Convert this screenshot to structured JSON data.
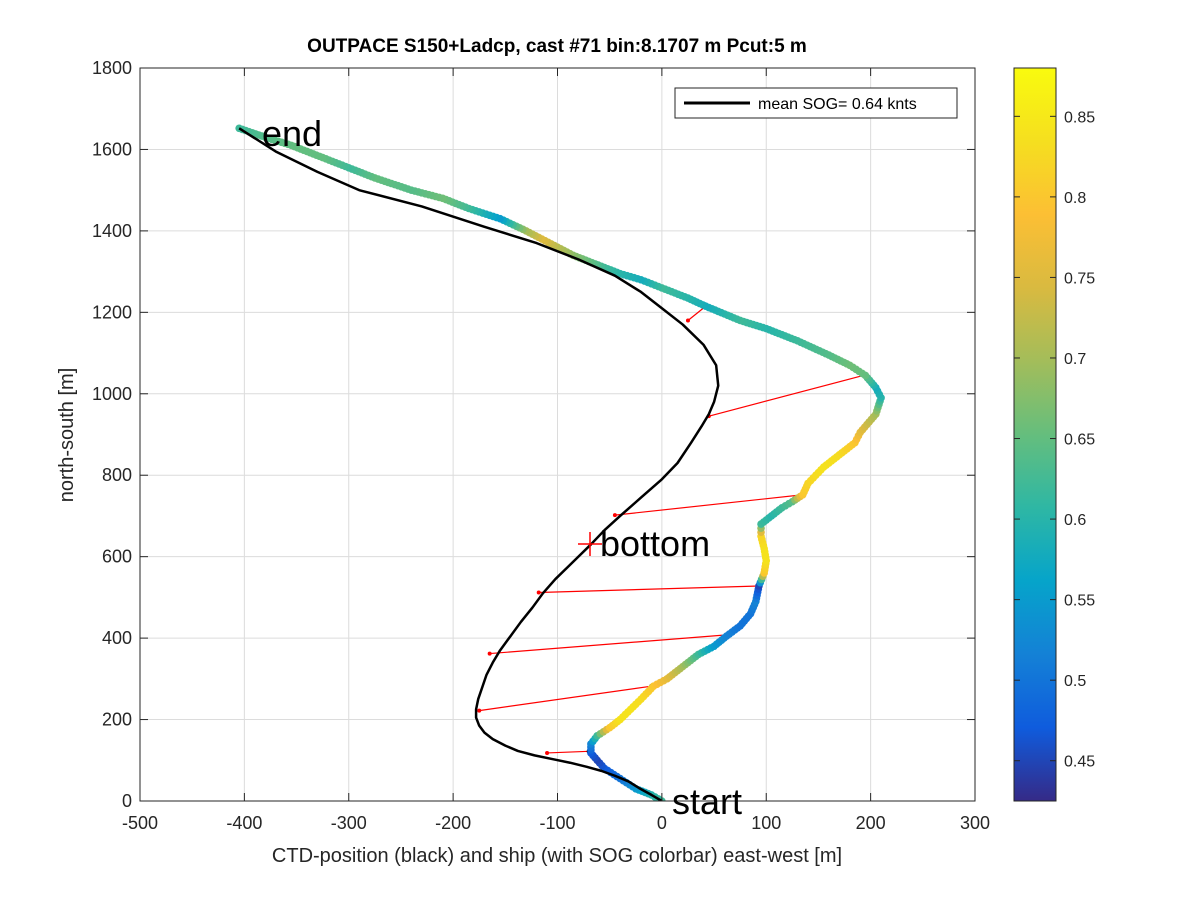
{
  "chart_data": {
    "type": "scatter",
    "title": "OUTPACE S150+Ladcp, cast #71 bin:8.1707 m  Pcut:5 m",
    "xlabel": "CTD-position (black) and ship (with SOG colorbar) east-west [m]",
    "ylabel": "north-south [m]",
    "xlim": [
      -500,
      300
    ],
    "ylim": [
      0,
      1800
    ],
    "x_ticks": [
      "-500",
      "-400",
      "-300",
      "-200",
      "-100",
      "0",
      "100",
      "200",
      "300"
    ],
    "y_ticks": [
      "0",
      "200",
      "400",
      "600",
      "800",
      "1000",
      "1200",
      "1400",
      "1600",
      "1800"
    ],
    "grid": true,
    "legend": {
      "position": "top-right",
      "entries": [
        "mean SOG=  0.64 knts"
      ]
    },
    "colorbar": {
      "range": [
        0.425,
        0.88
      ],
      "ticks": [
        "0.45",
        "0.5",
        "0.55",
        "0.6",
        "0.65",
        "0.7",
        "0.75",
        "0.8",
        "0.85"
      ],
      "colormap": "parula"
    },
    "annotations": [
      {
        "text": "end",
        "x": -405,
        "y": 1652
      },
      {
        "text": "bottom",
        "x": -68,
        "y": 630
      },
      {
        "text": "start",
        "x": 0,
        "y": 0
      }
    ],
    "ctd_track": {
      "color": "#000000",
      "points": [
        [
          0,
          0
        ],
        [
          -10,
          15
        ],
        [
          -22,
          32
        ],
        [
          -32,
          48
        ],
        [
          -45,
          62
        ],
        [
          -58,
          74
        ],
        [
          -72,
          84
        ],
        [
          -88,
          94
        ],
        [
          -105,
          103
        ],
        [
          -122,
          112
        ],
        [
          -138,
          123
        ],
        [
          -150,
          136
        ],
        [
          -162,
          152
        ],
        [
          -170,
          168
        ],
        [
          -175,
          185
        ],
        [
          -178,
          205
        ],
        [
          -178,
          225
        ],
        [
          -176,
          250
        ],
        [
          -172,
          280
        ],
        [
          -168,
          310
        ],
        [
          -162,
          340
        ],
        [
          -155,
          370
        ],
        [
          -145,
          405
        ],
        [
          -135,
          440
        ],
        [
          -124,
          475
        ],
        [
          -114,
          510
        ],
        [
          -102,
          545
        ],
        [
          -90,
          575
        ],
        [
          -78,
          605
        ],
        [
          -68,
          630
        ],
        [
          -55,
          665
        ],
        [
          -40,
          700
        ],
        [
          -20,
          745
        ],
        [
          0,
          790
        ],
        [
          15,
          830
        ],
        [
          28,
          880
        ],
        [
          38,
          920
        ],
        [
          45,
          950
        ],
        [
          50,
          980
        ],
        [
          54,
          1020
        ],
        [
          52,
          1070
        ],
        [
          40,
          1120
        ],
        [
          20,
          1170
        ],
        [
          0,
          1210
        ],
        [
          -20,
          1250
        ],
        [
          -45,
          1290
        ],
        [
          -80,
          1330
        ],
        [
          -120,
          1370
        ],
        [
          -170,
          1410
        ],
        [
          -230,
          1460
        ],
        [
          -290,
          1500
        ],
        [
          -330,
          1545
        ],
        [
          -370,
          1595
        ],
        [
          -405,
          1652
        ]
      ]
    },
    "ship_track": {
      "points": [
        [
          0,
          0,
          0.62
        ],
        [
          -10,
          15,
          0.6
        ],
        [
          -25,
          30,
          0.55
        ],
        [
          -40,
          55,
          0.5
        ],
        [
          -55,
          80,
          0.47
        ],
        [
          -62,
          100,
          0.45
        ],
        [
          -68,
          118,
          0.47
        ],
        [
          -68,
          140,
          0.52
        ],
        [
          -62,
          160,
          0.62
        ],
        [
          -50,
          180,
          0.8
        ],
        [
          -40,
          200,
          0.84
        ],
        [
          -30,
          225,
          0.84
        ],
        [
          -20,
          250,
          0.83
        ],
        [
          -8,
          282,
          0.8
        ],
        [
          5,
          300,
          0.76
        ],
        [
          20,
          330,
          0.7
        ],
        [
          35,
          360,
          0.62
        ],
        [
          50,
          380,
          0.55
        ],
        [
          62,
          405,
          0.52
        ],
        [
          75,
          430,
          0.5
        ],
        [
          85,
          460,
          0.5
        ],
        [
          90,
          490,
          0.52
        ],
        [
          93,
          528,
          0.45
        ],
        [
          98,
          560,
          0.8
        ],
        [
          100,
          590,
          0.84
        ],
        [
          98,
          620,
          0.84
        ],
        [
          95,
          650,
          0.82
        ],
        [
          95,
          680,
          0.62
        ],
        [
          105,
          700,
          0.6
        ],
        [
          115,
          720,
          0.62
        ],
        [
          125,
          735,
          0.64
        ],
        [
          135,
          752,
          0.8
        ],
        [
          140,
          780,
          0.82
        ],
        [
          155,
          820,
          0.84
        ],
        [
          170,
          850,
          0.83
        ],
        [
          185,
          880,
          0.8
        ],
        [
          190,
          905,
          0.76
        ],
        [
          205,
          950,
          0.7
        ],
        [
          210,
          990,
          0.6
        ],
        [
          205,
          1015,
          0.58
        ],
        [
          195,
          1045,
          0.65
        ],
        [
          180,
          1070,
          0.66
        ],
        [
          160,
          1095,
          0.64
        ],
        [
          130,
          1130,
          0.62
        ],
        [
          100,
          1160,
          0.6
        ],
        [
          75,
          1180,
          0.62
        ],
        [
          42,
          1215,
          0.58
        ],
        [
          25,
          1235,
          0.6
        ],
        [
          0,
          1260,
          0.62
        ],
        [
          -20,
          1280,
          0.58
        ],
        [
          -40,
          1295,
          0.6
        ],
        [
          -55,
          1310,
          0.62
        ],
        [
          -85,
          1340,
          0.68
        ],
        [
          -115,
          1380,
          0.75
        ],
        [
          -130,
          1400,
          0.7
        ],
        [
          -155,
          1430,
          0.55
        ],
        [
          -185,
          1455,
          0.62
        ],
        [
          -210,
          1480,
          0.66
        ],
        [
          -240,
          1500,
          0.64
        ],
        [
          -275,
          1530,
          0.65
        ],
        [
          -300,
          1555,
          0.62
        ],
        [
          -325,
          1580,
          0.65
        ],
        [
          -355,
          1610,
          0.65
        ],
        [
          -380,
          1630,
          0.64
        ],
        [
          -405,
          1652,
          0.62
        ]
      ]
    },
    "connectors": {
      "color": "#ff0000",
      "pairs": [
        [
          [
            -70,
            122
          ],
          [
            -110,
            118
          ]
        ],
        [
          [
            -10,
            282
          ],
          [
            -175,
            222
          ]
        ],
        [
          [
            62,
            408
          ],
          [
            -165,
            362
          ]
        ],
        [
          [
            93,
            528
          ],
          [
            -118,
            512
          ]
        ],
        [
          [
            135,
            752
          ],
          [
            -45,
            702
          ]
        ],
        [
          [
            193,
            1045
          ],
          [
            45,
            945
          ]
        ],
        [
          [
            42,
            1215
          ],
          [
            25,
            1180
          ]
        ],
        [
          [
            -405,
            1652
          ],
          [
            -390,
            1640
          ]
        ]
      ]
    }
  }
}
